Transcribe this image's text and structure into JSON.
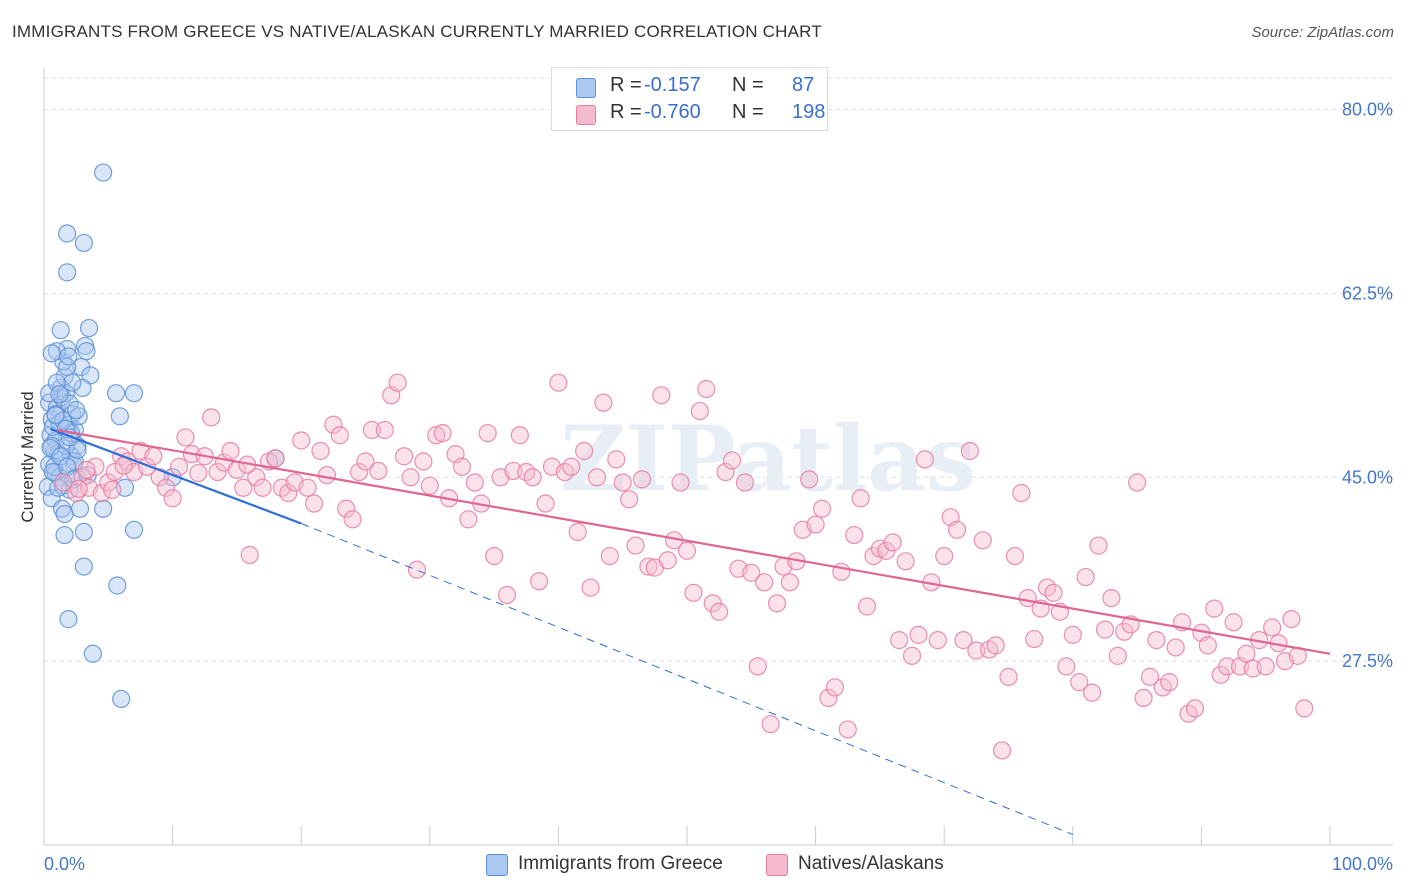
{
  "title": "IMMIGRANTS FROM GREECE VS NATIVE/ALASKAN CURRENTLY MARRIED CORRELATION CHART",
  "source": "Source: ZipAtlas.com",
  "watermark": "ZIPatlas",
  "colors": {
    "blue": "#5b8fd6",
    "blue_fill": "#aac8f0",
    "pink": "#e87ca2",
    "pink_fill": "#f5bcd0",
    "blue_line": "#2f6fd6",
    "pink_line": "#e0658f",
    "tick_text": "#4477cc",
    "grid": "#dde3ea"
  },
  "stats": {
    "rows": [
      {
        "r_label": "R =",
        "r_value": "-0.157",
        "n_label": "N =",
        "n_value": "87",
        "series": "blue"
      },
      {
        "r_label": "R =",
        "r_value": "-0.760",
        "n_label": "N =",
        "n_value": "198",
        "series": "pink"
      }
    ]
  },
  "legend": {
    "items": [
      {
        "label": "Immigrants from Greece",
        "series": "blue"
      },
      {
        "label": "Natives/Alaskans",
        "series": "pink"
      }
    ]
  },
  "chart_data": {
    "type": "scatter",
    "title": "IMMIGRANTS FROM GREECE VS NATIVE/ALASKAN CURRENTLY MARRIED CORRELATION CHART",
    "xlabel": "",
    "ylabel": "Currently Married",
    "xlim": [
      0,
      100
    ],
    "ylim": [
      10,
      83
    ],
    "x_tick_labels": [
      {
        "value": 0,
        "label": "0.0%"
      },
      {
        "value": 100,
        "label": "100.0%"
      }
    ],
    "y_tick_labels": [
      {
        "value": 27.5,
        "label": "27.5%"
      },
      {
        "value": 45.0,
        "label": "45.0%"
      },
      {
        "value": 62.5,
        "label": "62.5%"
      },
      {
        "value": 80.0,
        "label": "80.0%"
      }
    ],
    "grid": "horizontal dashed",
    "legend_position": "bottom-center",
    "series": [
      {
        "name": "Immigrants from Greece",
        "color": "#5b8fd6",
        "trend": {
          "x0": 0.5,
          "y0": 49.6,
          "x1": 20.0,
          "y1": 40.6,
          "x_dashed_end": 80.0,
          "y_dashed_end": 11.0
        },
        "points": [
          [
            0.4,
            52.1
          ],
          [
            0.6,
            50.5
          ],
          [
            0.5,
            49.0
          ],
          [
            0.8,
            47.5
          ],
          [
            0.4,
            46.2
          ],
          [
            0.9,
            45.4
          ],
          [
            0.3,
            44.1
          ],
          [
            0.6,
            43.0
          ],
          [
            1.0,
            51.6
          ],
          [
            1.2,
            50.2
          ],
          [
            0.9,
            48.5
          ],
          [
            1.1,
            47.3
          ],
          [
            0.7,
            49.8
          ],
          [
            1.4,
            52.6
          ],
          [
            1.3,
            53.5
          ],
          [
            1.6,
            54.6
          ],
          [
            1.5,
            56.0
          ],
          [
            1.8,
            57.2
          ],
          [
            1.0,
            57.0
          ],
          [
            1.3,
            59.0
          ],
          [
            1.7,
            53.0
          ],
          [
            2.0,
            52.0
          ],
          [
            2.2,
            51.0
          ],
          [
            1.9,
            50.0
          ],
          [
            2.4,
            49.5
          ],
          [
            2.6,
            48.0
          ],
          [
            2.1,
            47.0
          ],
          [
            2.3,
            46.2
          ],
          [
            1.2,
            45.0
          ],
          [
            1.5,
            44.2
          ],
          [
            2.0,
            43.8
          ],
          [
            1.4,
            42.0
          ],
          [
            1.6,
            41.5
          ],
          [
            2.8,
            42.0
          ],
          [
            2.5,
            45.0
          ],
          [
            2.9,
            55.5
          ],
          [
            3.2,
            57.5
          ],
          [
            3.3,
            57.0
          ],
          [
            3.5,
            59.2
          ],
          [
            3.6,
            54.7
          ],
          [
            3.0,
            53.5
          ],
          [
            1.8,
            55.5
          ],
          [
            2.2,
            54.0
          ],
          [
            2.7,
            50.8
          ],
          [
            1.7,
            48.0
          ],
          [
            2.4,
            46.5
          ],
          [
            1.1,
            44.0
          ],
          [
            0.8,
            46.0
          ],
          [
            3.1,
            39.8
          ],
          [
            4.6,
            42.0
          ],
          [
            1.6,
            39.5
          ],
          [
            3.1,
            36.5
          ],
          [
            5.6,
            53.0
          ],
          [
            7.0,
            53.0
          ],
          [
            5.9,
            50.8
          ],
          [
            6.3,
            44.0
          ],
          [
            7.0,
            40.0
          ],
          [
            4.6,
            74.0
          ],
          [
            1.8,
            68.2
          ],
          [
            3.1,
            67.3
          ],
          [
            1.8,
            64.5
          ],
          [
            1.9,
            31.5
          ],
          [
            3.8,
            28.2
          ],
          [
            5.7,
            34.7
          ],
          [
            6.0,
            23.9
          ],
          [
            10.0,
            45.0
          ],
          [
            18.0,
            46.8
          ],
          [
            0.6,
            48.0
          ],
          [
            0.9,
            51.0
          ],
          [
            1.5,
            50.4
          ],
          [
            2.1,
            49.2
          ],
          [
            0.5,
            47.8
          ],
          [
            1.3,
            47.0
          ],
          [
            2.6,
            47.6
          ],
          [
            0.7,
            45.5
          ],
          [
            1.8,
            46.0
          ],
          [
            2.3,
            44.8
          ],
          [
            0.4,
            53.0
          ],
          [
            1.9,
            56.5
          ],
          [
            2.5,
            51.4
          ],
          [
            1.0,
            54.0
          ],
          [
            0.6,
            56.8
          ],
          [
            1.2,
            52.9
          ],
          [
            0.9,
            50.9
          ],
          [
            1.7,
            49.6
          ],
          [
            2.0,
            48.8
          ],
          [
            3.4,
            45.2
          ]
        ]
      },
      {
        "name": "Natives/Alaskans",
        "color": "#e87ca2",
        "trend": {
          "x0": 1.0,
          "y0": 49.5,
          "x1": 100.0,
          "y1": 28.2
        },
        "points": [
          [
            1.5,
            44.5
          ],
          [
            2.5,
            43.5
          ],
          [
            3.0,
            45.0
          ],
          [
            3.5,
            44.0
          ],
          [
            4.0,
            46.0
          ],
          [
            4.5,
            43.5
          ],
          [
            5.0,
            44.5
          ],
          [
            5.5,
            45.5
          ],
          [
            6.0,
            47.0
          ],
          [
            6.5,
            46.5
          ],
          [
            7.0,
            45.5
          ],
          [
            7.5,
            47.5
          ],
          [
            8.0,
            46.0
          ],
          [
            8.5,
            47.0
          ],
          [
            9.0,
            45.0
          ],
          [
            9.5,
            44.0
          ],
          [
            10.0,
            43.0
          ],
          [
            10.5,
            46.0
          ],
          [
            11.0,
            48.8
          ],
          [
            11.5,
            47.2
          ],
          [
            12.0,
            45.4
          ],
          [
            12.5,
            47.0
          ],
          [
            13.0,
            50.7
          ],
          [
            13.5,
            45.5
          ],
          [
            14.0,
            46.4
          ],
          [
            14.5,
            47.5
          ],
          [
            15.0,
            45.7
          ],
          [
            15.5,
            44.0
          ],
          [
            16.0,
            37.6
          ],
          [
            16.5,
            45.0
          ],
          [
            17.0,
            44.0
          ],
          [
            17.5,
            46.5
          ],
          [
            18.0,
            46.8
          ],
          [
            18.5,
            44.0
          ],
          [
            19.0,
            43.5
          ],
          [
            19.5,
            44.5
          ],
          [
            20.0,
            48.5
          ],
          [
            20.5,
            44.0
          ],
          [
            21.0,
            42.5
          ],
          [
            21.5,
            47.5
          ],
          [
            22.0,
            45.2
          ],
          [
            22.5,
            50.0
          ],
          [
            23.0,
            49.0
          ],
          [
            23.5,
            42.0
          ],
          [
            24.0,
            41.0
          ],
          [
            24.5,
            45.5
          ],
          [
            25.0,
            46.5
          ],
          [
            25.5,
            49.5
          ],
          [
            26.0,
            45.6
          ],
          [
            26.5,
            49.5
          ],
          [
            27.0,
            52.8
          ],
          [
            27.5,
            54.0
          ],
          [
            28.0,
            47.0
          ],
          [
            28.5,
            45.0
          ],
          [
            29.0,
            36.2
          ],
          [
            29.5,
            46.5
          ],
          [
            30.0,
            44.2
          ],
          [
            30.5,
            49.0
          ],
          [
            31.0,
            49.2
          ],
          [
            31.5,
            43.0
          ],
          [
            32.0,
            47.2
          ],
          [
            32.5,
            46.0
          ],
          [
            33.0,
            41.0
          ],
          [
            33.5,
            44.5
          ],
          [
            34.0,
            42.5
          ],
          [
            34.5,
            49.2
          ],
          [
            35.0,
            37.5
          ],
          [
            35.5,
            45.0
          ],
          [
            36.0,
            33.8
          ],
          [
            36.5,
            45.6
          ],
          [
            37.0,
            49.0
          ],
          [
            37.5,
            45.5
          ],
          [
            38.0,
            45.0
          ],
          [
            38.5,
            35.1
          ],
          [
            39.0,
            42.5
          ],
          [
            39.5,
            46.0
          ],
          [
            40.0,
            54.0
          ],
          [
            40.5,
            45.5
          ],
          [
            41.0,
            46.0
          ],
          [
            41.5,
            39.8
          ],
          [
            42.0,
            47.5
          ],
          [
            42.5,
            34.5
          ],
          [
            43.0,
            45.0
          ],
          [
            43.5,
            52.1
          ],
          [
            44.0,
            37.5
          ],
          [
            44.5,
            46.7
          ],
          [
            45.0,
            44.5
          ],
          [
            45.5,
            42.9
          ],
          [
            46.0,
            38.5
          ],
          [
            46.5,
            44.8
          ],
          [
            47.0,
            36.5
          ],
          [
            47.5,
            36.4
          ],
          [
            48.0,
            52.8
          ],
          [
            48.5,
            37.1
          ],
          [
            49.0,
            39.0
          ],
          [
            49.5,
            44.5
          ],
          [
            50.0,
            38.0
          ],
          [
            50.5,
            34.0
          ],
          [
            51.0,
            51.3
          ],
          [
            51.5,
            53.4
          ],
          [
            52.0,
            33.0
          ],
          [
            52.5,
            32.2
          ],
          [
            53.0,
            45.5
          ],
          [
            53.5,
            46.6
          ],
          [
            54.0,
            36.3
          ],
          [
            54.5,
            44.5
          ],
          [
            55.0,
            35.9
          ],
          [
            55.5,
            27.0
          ],
          [
            56.0,
            35.0
          ],
          [
            56.5,
            21.5
          ],
          [
            57.0,
            33.0
          ],
          [
            57.5,
            36.5
          ],
          [
            58.0,
            35.0
          ],
          [
            58.5,
            37.0
          ],
          [
            59.0,
            40.0
          ],
          [
            59.5,
            44.8
          ],
          [
            60.0,
            40.5
          ],
          [
            60.5,
            42.0
          ],
          [
            61.0,
            24.0
          ],
          [
            61.5,
            25.0
          ],
          [
            62.0,
            36.0
          ],
          [
            62.5,
            21.0
          ],
          [
            63.0,
            39.5
          ],
          [
            63.5,
            43.0
          ],
          [
            64.0,
            32.7
          ],
          [
            64.5,
            37.5
          ],
          [
            65.0,
            38.2
          ],
          [
            65.5,
            38.0
          ],
          [
            66.0,
            38.8
          ],
          [
            66.5,
            29.5
          ],
          [
            67.0,
            37.0
          ],
          [
            67.5,
            28.0
          ],
          [
            68.0,
            30.0
          ],
          [
            68.5,
            46.7
          ],
          [
            69.0,
            35.0
          ],
          [
            69.5,
            29.5
          ],
          [
            70.0,
            37.5
          ],
          [
            70.5,
            41.2
          ],
          [
            71.0,
            40.0
          ],
          [
            71.5,
            29.5
          ],
          [
            72.0,
            47.5
          ],
          [
            72.5,
            28.5
          ],
          [
            73.0,
            39.0
          ],
          [
            73.5,
            28.6
          ],
          [
            74.0,
            29.0
          ],
          [
            74.5,
            19.0
          ],
          [
            75.0,
            26.0
          ],
          [
            75.5,
            37.5
          ],
          [
            76.0,
            43.5
          ],
          [
            76.5,
            33.5
          ],
          [
            77.0,
            29.6
          ],
          [
            77.5,
            32.5
          ],
          [
            78.0,
            34.5
          ],
          [
            78.5,
            34.0
          ],
          [
            79.0,
            32.2
          ],
          [
            79.5,
            27.0
          ],
          [
            80.0,
            30.0
          ],
          [
            80.5,
            25.5
          ],
          [
            81.0,
            35.5
          ],
          [
            81.5,
            24.5
          ],
          [
            82.0,
            38.5
          ],
          [
            82.5,
            30.5
          ],
          [
            83.0,
            33.5
          ],
          [
            83.5,
            28.0
          ],
          [
            84.0,
            30.3
          ],
          [
            84.5,
            31.0
          ],
          [
            85.0,
            44.5
          ],
          [
            85.5,
            24.0
          ],
          [
            86.0,
            26.0
          ],
          [
            86.5,
            29.5
          ],
          [
            87.0,
            25.0
          ],
          [
            87.5,
            25.5
          ],
          [
            88.0,
            28.8
          ],
          [
            88.5,
            31.2
          ],
          [
            89.0,
            22.5
          ],
          [
            89.5,
            23.0
          ],
          [
            90.0,
            30.2
          ],
          [
            90.5,
            29.0
          ],
          [
            91.0,
            32.5
          ],
          [
            91.5,
            26.2
          ],
          [
            92.0,
            27.0
          ],
          [
            92.5,
            31.2
          ],
          [
            93.0,
            27.0
          ],
          [
            93.5,
            28.2
          ],
          [
            94.0,
            26.8
          ],
          [
            94.5,
            29.5
          ],
          [
            95.0,
            27.0
          ],
          [
            95.5,
            30.7
          ],
          [
            96.0,
            29.2
          ],
          [
            96.5,
            27.5
          ],
          [
            97.0,
            31.5
          ],
          [
            97.5,
            28.0
          ],
          [
            98.0,
            23.0
          ],
          [
            3.3,
            45.7
          ],
          [
            6.2,
            46.1
          ],
          [
            15.8,
            46.2
          ],
          [
            2.7,
            43.9
          ],
          [
            5.3,
            43.8
          ]
        ]
      }
    ]
  }
}
